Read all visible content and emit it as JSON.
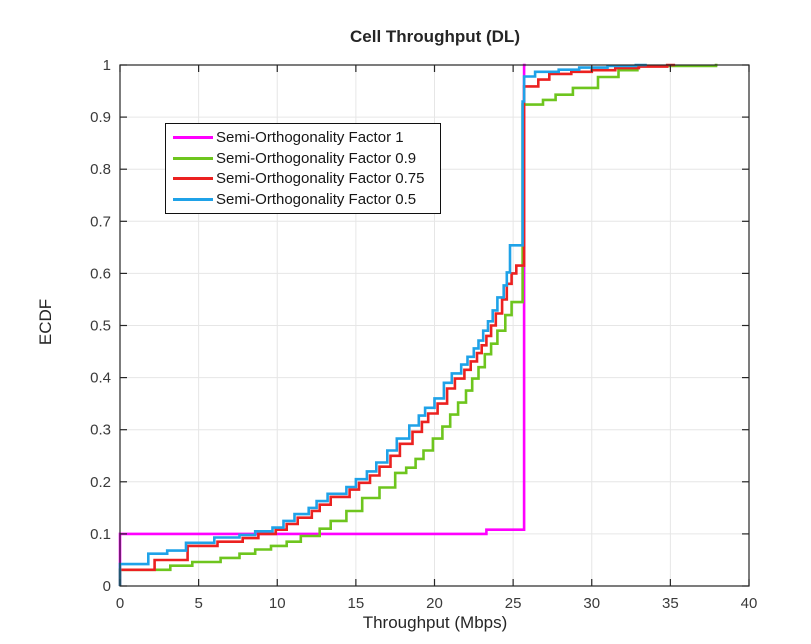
{
  "figure": {
    "background": "#ffffff",
    "axis_color": "#262626",
    "grid_color": "#e6e6e6",
    "tick_label_color": "#3a3a3a",
    "legend_border_color": "#101010"
  },
  "chart_data": {
    "type": "line",
    "subtype": "ecdf-stairs",
    "title": "Cell Throughput (DL)",
    "xlabel": "Throughput (Mbps)",
    "ylabel": "ECDF",
    "xlim": [
      0,
      40
    ],
    "ylim": [
      0,
      1
    ],
    "xticks": [
      0,
      5,
      10,
      15,
      20,
      25,
      30,
      35,
      40
    ],
    "xtick_labels": [
      "0",
      "5",
      "10",
      "15",
      "20",
      "25",
      "30",
      "35",
      "40"
    ],
    "yticks": [
      0,
      0.1,
      0.2,
      0.3,
      0.4,
      0.5,
      0.6,
      0.7,
      0.8,
      0.9,
      1
    ],
    "ytick_labels": [
      "0",
      "0.1",
      "0.2",
      "0.3",
      "0.4",
      "0.5",
      "0.6",
      "0.7",
      "0.8",
      "0.9",
      "1"
    ],
    "grid": true,
    "legend_position": "upper-left-inside",
    "series": [
      {
        "name": "Semi-Orthogonality Factor 1",
        "color": "#FF00FF",
        "points": [
          [
            0,
            0.1
          ],
          [
            23.3,
            0.108
          ],
          [
            25.7,
            1.0
          ],
          [
            25.8,
            1.0
          ]
        ]
      },
      {
        "name": "Semi-Orthogonality Factor 0.9",
        "color": "#6EC51E",
        "points": [
          [
            0,
            0.031
          ],
          [
            3.2,
            0.039
          ],
          [
            4.6,
            0.046
          ],
          [
            6.4,
            0.054
          ],
          [
            7.6,
            0.062
          ],
          [
            8.6,
            0.07
          ],
          [
            9.6,
            0.077
          ],
          [
            10.6,
            0.085
          ],
          [
            11.5,
            0.096
          ],
          [
            12.7,
            0.11
          ],
          [
            13.4,
            0.125
          ],
          [
            14.4,
            0.144
          ],
          [
            15.4,
            0.169
          ],
          [
            16.5,
            0.189
          ],
          [
            17.5,
            0.217
          ],
          [
            18.2,
            0.227
          ],
          [
            18.8,
            0.244
          ],
          [
            19.3,
            0.26
          ],
          [
            19.9,
            0.283
          ],
          [
            20.5,
            0.306
          ],
          [
            21.0,
            0.329
          ],
          [
            21.5,
            0.352
          ],
          [
            22.0,
            0.375
          ],
          [
            22.4,
            0.398
          ],
          [
            22.8,
            0.42
          ],
          [
            23.2,
            0.445
          ],
          [
            23.6,
            0.465
          ],
          [
            24.0,
            0.49
          ],
          [
            24.5,
            0.52
          ],
          [
            24.9,
            0.545
          ],
          [
            25.6,
            0.924
          ],
          [
            26.9,
            0.933
          ],
          [
            27.7,
            0.943
          ],
          [
            28.8,
            0.956
          ],
          [
            30.4,
            0.977
          ],
          [
            31.7,
            0.99
          ],
          [
            32.9,
            0.998
          ],
          [
            37.9,
            1.0
          ],
          [
            38.0,
            1.0
          ]
        ]
      },
      {
        "name": "Semi-Orthogonality Factor 0.75",
        "color": "#EB2120",
        "points": [
          [
            0,
            0.031
          ],
          [
            2.2,
            0.05
          ],
          [
            4.3,
            0.077
          ],
          [
            6.2,
            0.085
          ],
          [
            7.8,
            0.092
          ],
          [
            8.8,
            0.1
          ],
          [
            9.9,
            0.108
          ],
          [
            10.6,
            0.119
          ],
          [
            11.3,
            0.131
          ],
          [
            12.2,
            0.144
          ],
          [
            12.7,
            0.156
          ],
          [
            13.4,
            0.171
          ],
          [
            14.6,
            0.185
          ],
          [
            15.2,
            0.198
          ],
          [
            15.9,
            0.212
          ],
          [
            16.5,
            0.229
          ],
          [
            17.2,
            0.25
          ],
          [
            17.8,
            0.273
          ],
          [
            18.6,
            0.296
          ],
          [
            19.2,
            0.315
          ],
          [
            19.6,
            0.331
          ],
          [
            20.2,
            0.35
          ],
          [
            20.8,
            0.379
          ],
          [
            21.3,
            0.398
          ],
          [
            21.9,
            0.415
          ],
          [
            22.3,
            0.431
          ],
          [
            22.7,
            0.447
          ],
          [
            23.0,
            0.462
          ],
          [
            23.3,
            0.48
          ],
          [
            23.6,
            0.5
          ],
          [
            23.9,
            0.523
          ],
          [
            24.3,
            0.55
          ],
          [
            24.6,
            0.58
          ],
          [
            24.9,
            0.6
          ],
          [
            25.2,
            0.615
          ],
          [
            25.7,
            0.959
          ],
          [
            26.6,
            0.972
          ],
          [
            27.3,
            0.983
          ],
          [
            28.7,
            0.987
          ],
          [
            30.0,
            0.99
          ],
          [
            31.5,
            0.994
          ],
          [
            33.0,
            0.997
          ],
          [
            34.8,
            1.0
          ],
          [
            35.3,
            1.0
          ]
        ]
      },
      {
        "name": "Semi-Orthogonality Factor 0.5",
        "color": "#1FA2E8",
        "points": [
          [
            0,
            0.042
          ],
          [
            1.8,
            0.062
          ],
          [
            3.0,
            0.068
          ],
          [
            4.2,
            0.083
          ],
          [
            6.0,
            0.093
          ],
          [
            7.6,
            0.098
          ],
          [
            8.6,
            0.105
          ],
          [
            9.7,
            0.112
          ],
          [
            10.4,
            0.125
          ],
          [
            11.1,
            0.138
          ],
          [
            12.0,
            0.15
          ],
          [
            12.5,
            0.163
          ],
          [
            13.2,
            0.177
          ],
          [
            14.4,
            0.19
          ],
          [
            15.0,
            0.205
          ],
          [
            15.7,
            0.22
          ],
          [
            16.3,
            0.237
          ],
          [
            17.0,
            0.26
          ],
          [
            17.6,
            0.283
          ],
          [
            18.4,
            0.308
          ],
          [
            19.0,
            0.327
          ],
          [
            19.4,
            0.342
          ],
          [
            20.0,
            0.36
          ],
          [
            20.6,
            0.39
          ],
          [
            21.1,
            0.408
          ],
          [
            21.7,
            0.425
          ],
          [
            22.1,
            0.44
          ],
          [
            22.5,
            0.456
          ],
          [
            22.8,
            0.471
          ],
          [
            23.1,
            0.49
          ],
          [
            23.4,
            0.508
          ],
          [
            23.7,
            0.529
          ],
          [
            24.0,
            0.554
          ],
          [
            24.4,
            0.577
          ],
          [
            24.6,
            0.602
          ],
          [
            24.8,
            0.654
          ],
          [
            25.6,
            0.93
          ],
          [
            25.7,
            0.978
          ],
          [
            26.4,
            0.987
          ],
          [
            27.9,
            0.991
          ],
          [
            29.2,
            0.995
          ],
          [
            31.0,
            0.998
          ],
          [
            32.8,
            1.0
          ],
          [
            33.5,
            1.0
          ]
        ]
      }
    ]
  }
}
